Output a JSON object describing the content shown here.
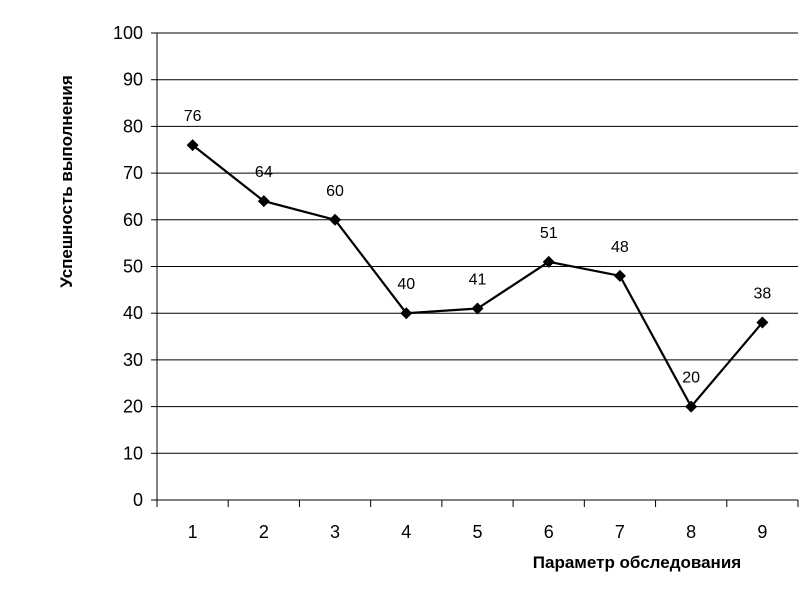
{
  "chart_data": {
    "type": "line",
    "x": [
      1,
      2,
      3,
      4,
      5,
      6,
      7,
      8,
      9
    ],
    "categories": [
      "1",
      "2",
      "3",
      "4",
      "5",
      "6",
      "7",
      "8",
      "9"
    ],
    "series": [
      {
        "values": [
          76,
          64,
          60,
          40,
          41,
          51,
          48,
          20,
          38
        ]
      }
    ],
    "data_labels": [
      "76",
      "64",
      "60",
      "40",
      "41",
      "51",
      "48",
      "20",
      "38"
    ],
    "xlabel": "Параметр обследования",
    "ylabel": "Успешность выполнения",
    "ylim": [
      0,
      100
    ],
    "yticks": [
      0,
      10,
      20,
      30,
      40,
      50,
      60,
      70,
      80,
      90,
      100
    ],
    "grid": true,
    "marker": "diamond",
    "line_color": "#000000"
  }
}
